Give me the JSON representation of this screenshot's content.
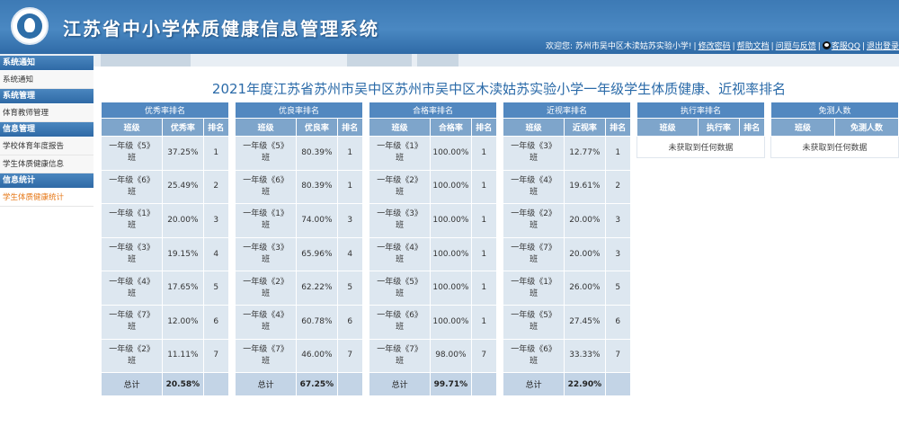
{
  "header": {
    "title": "江苏省中小学体质健康信息管理系统",
    "welcome": "欢迎您: 苏州市吴中区木渎姑苏实验小学!",
    "links": [
      "修改密码",
      "帮助文档",
      "问题与反馈"
    ],
    "qq": "客服QQ",
    "logout": "退出登录"
  },
  "sidebar": {
    "groups": [
      {
        "title": "系统通知",
        "items": [
          {
            "label": "系统通知"
          }
        ]
      },
      {
        "title": "系统管理",
        "items": [
          {
            "label": "体育教师管理"
          }
        ]
      },
      {
        "title": "信息管理",
        "items": [
          {
            "label": "学校体育年度报告"
          },
          {
            "label": "学生体质健康信息"
          }
        ]
      },
      {
        "title": "信息统计",
        "items": [
          {
            "label": "学生体质健康统计"
          }
        ]
      }
    ]
  },
  "page_title": "2021年度江苏省苏州市吴中区苏州市吴中区木渎姑苏实验小学一年级学生体质健康、近视率排名",
  "panels": [
    {
      "title": "优秀率排名",
      "headers": [
        "班级",
        "优秀率",
        "排名"
      ],
      "rows": [
        [
          "一年级《5》班",
          "37.25%",
          "1"
        ],
        [
          "一年级《6》班",
          "25.49%",
          "2"
        ],
        [
          "一年级《1》班",
          "20.00%",
          "3"
        ],
        [
          "一年级《3》班",
          "19.15%",
          "4"
        ],
        [
          "一年级《4》班",
          "17.65%",
          "5"
        ],
        [
          "一年级《7》班",
          "12.00%",
          "6"
        ],
        [
          "一年级《2》班",
          "11.11%",
          "7"
        ]
      ],
      "total": [
        "总计",
        "20.58%"
      ]
    },
    {
      "title": "优良率排名",
      "headers": [
        "班级",
        "优良率",
        "排名"
      ],
      "rows": [
        [
          "一年级《5》班",
          "80.39%",
          "1"
        ],
        [
          "一年级《6》班",
          "80.39%",
          "1"
        ],
        [
          "一年级《1》班",
          "74.00%",
          "3"
        ],
        [
          "一年级《3》班",
          "65.96%",
          "4"
        ],
        [
          "一年级《2》班",
          "62.22%",
          "5"
        ],
        [
          "一年级《4》班",
          "60.78%",
          "6"
        ],
        [
          "一年级《7》班",
          "46.00%",
          "7"
        ]
      ],
      "total": [
        "总计",
        "67.25%"
      ]
    },
    {
      "title": "合格率排名",
      "headers": [
        "班级",
        "合格率",
        "排名"
      ],
      "rows": [
        [
          "一年级《1》班",
          "100.00%",
          "1"
        ],
        [
          "一年级《2》班",
          "100.00%",
          "1"
        ],
        [
          "一年级《3》班",
          "100.00%",
          "1"
        ],
        [
          "一年级《4》班",
          "100.00%",
          "1"
        ],
        [
          "一年级《5》班",
          "100.00%",
          "1"
        ],
        [
          "一年级《6》班",
          "100.00%",
          "1"
        ],
        [
          "一年级《7》班",
          "98.00%",
          "7"
        ]
      ],
      "total": [
        "总计",
        "99.71%"
      ]
    },
    {
      "title": "近视率排名",
      "headers": [
        "班级",
        "近视率",
        "排名"
      ],
      "rows": [
        [
          "一年级《3》班",
          "12.77%",
          "1"
        ],
        [
          "一年级《4》班",
          "19.61%",
          "2"
        ],
        [
          "一年级《2》班",
          "20.00%",
          "3"
        ],
        [
          "一年级《7》班",
          "20.00%",
          "3"
        ],
        [
          "一年级《1》班",
          "26.00%",
          "5"
        ],
        [
          "一年级《5》班",
          "27.45%",
          "6"
        ],
        [
          "一年级《6》班",
          "33.33%",
          "7"
        ]
      ],
      "total": [
        "总计",
        "22.90%"
      ]
    },
    {
      "title": "执行率排名",
      "headers": [
        "班级",
        "执行率",
        "排名"
      ],
      "empty": "未获取到任何数据"
    },
    {
      "title": "免测人数",
      "headers": [
        "班级",
        "免测人数"
      ],
      "empty": "未获取到任何数据"
    }
  ],
  "colors": {
    "header": "#3d7ab5",
    "accent": "#2a6aa8",
    "active_menu": "#e67817"
  }
}
